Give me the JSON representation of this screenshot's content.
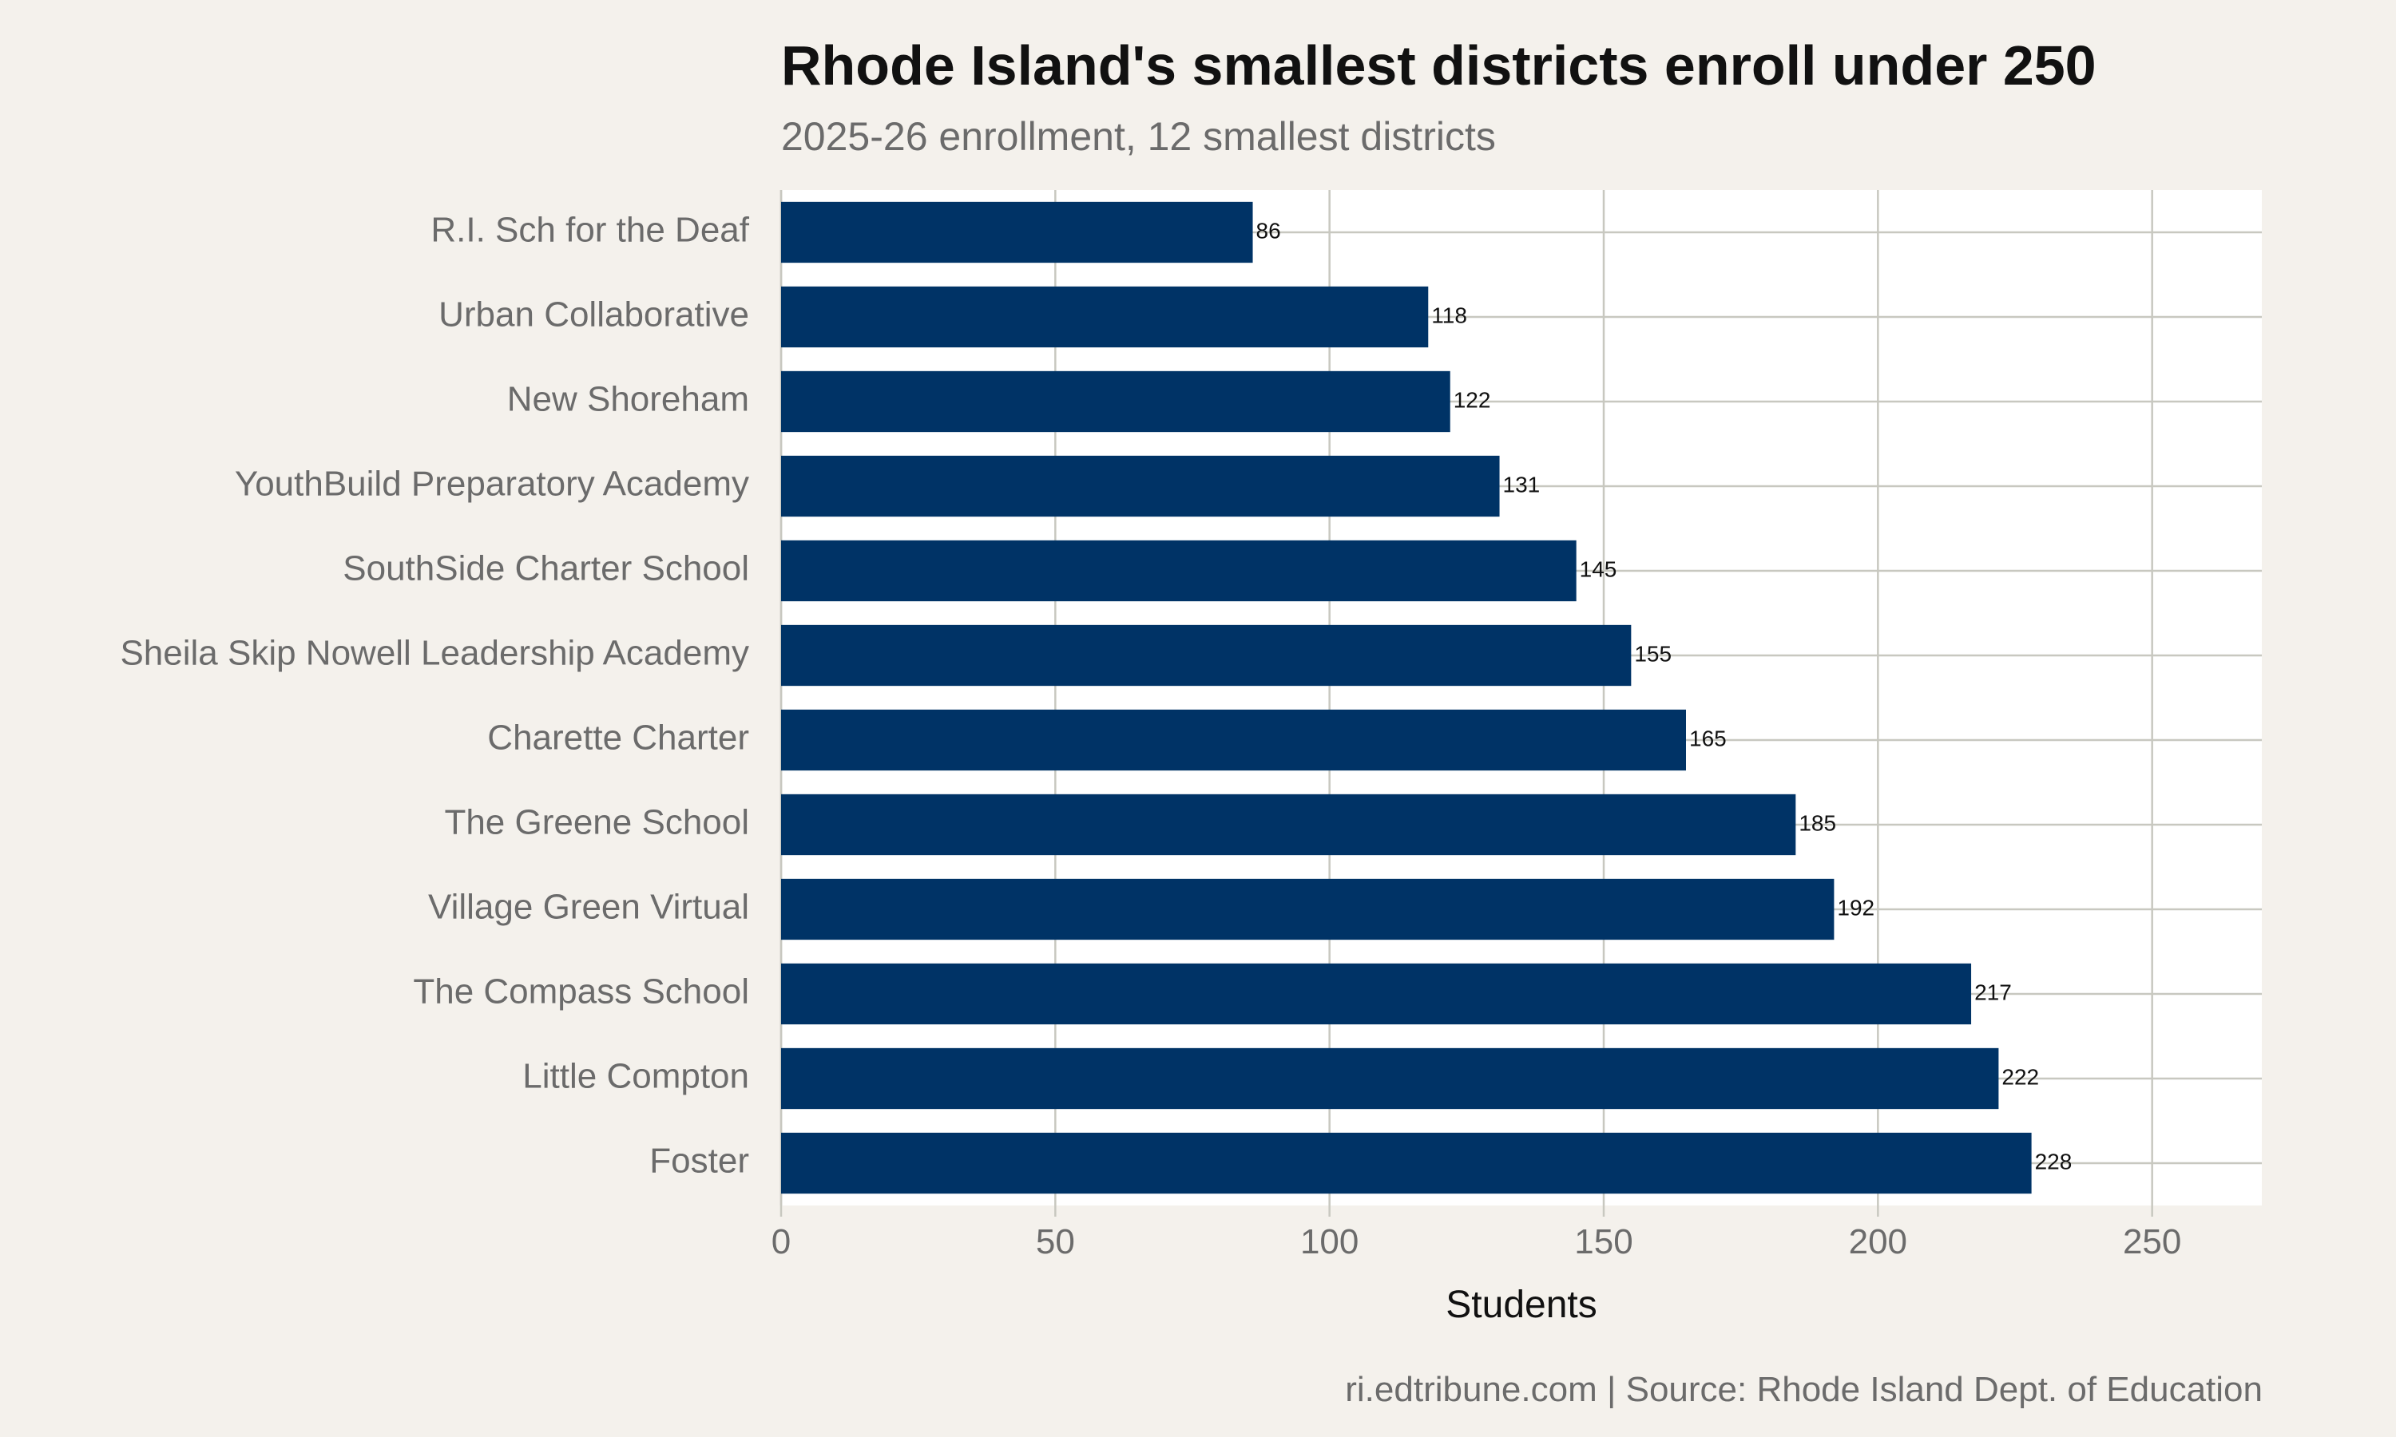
{
  "chart_data": {
    "type": "bar",
    "orientation": "horizontal",
    "title": "Rhode Island's smallest districts enroll under 250",
    "subtitle": "2025-26 enrollment, 12 smallest districts",
    "xlabel": "Students",
    "ylabel": "",
    "caption": "ri.edtribune.com | Source: Rhode Island Dept. of Education",
    "categories": [
      "R.I. Sch for the Deaf",
      "Urban Collaborative",
      "New Shoreham",
      "YouthBuild Preparatory Academy",
      "SouthSide Charter School",
      "Sheila Skip Nowell Leadership Academy",
      "Charette Charter",
      "The Greene School",
      "Village Green Virtual",
      "The Compass School",
      "Little Compton",
      "Foster"
    ],
    "values": [
      86,
      118,
      122,
      131,
      145,
      155,
      165,
      185,
      192,
      217,
      222,
      228
    ],
    "data_labels": [
      "86",
      "118",
      "122",
      "131",
      "145",
      "155",
      "165",
      "185",
      "192",
      "217",
      "222",
      "228"
    ],
    "xlim": [
      0,
      270
    ],
    "xticks": [
      0,
      50,
      100,
      150,
      200,
      250
    ],
    "xtick_labels": [
      "0",
      "50",
      "100",
      "150",
      "200",
      "250"
    ],
    "grid": true,
    "legend": "none",
    "colors": {
      "bar": "#003366",
      "background": "#f4f1ec",
      "panel": "#ffffff",
      "grid": "#c8c8c0",
      "label_text": "#6b6b6b",
      "value_text": "#111111"
    }
  }
}
